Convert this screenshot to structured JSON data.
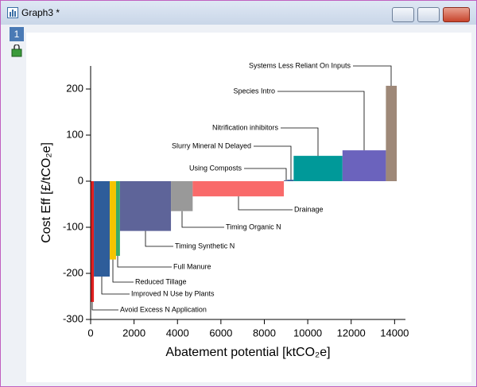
{
  "window": {
    "title": "Graph3 *",
    "layer": "1"
  },
  "chart_data": {
    "type": "mac",
    "xlabel": "Abatement potential [ktCO₂e]",
    "ylabel": "Cost Eff [£/tCO₂e]",
    "xlim": [
      0,
      14500
    ],
    "xticks": [
      0,
      2000,
      4000,
      6000,
      8000,
      10000,
      12000,
      14000
    ],
    "ylim": [
      -300,
      250
    ],
    "yticks": [
      -300,
      -200,
      -100,
      0,
      100,
      200
    ],
    "categories": [
      "Avoid Excess N Application",
      "Improved N Use by Plants",
      "Reduced Tillage",
      "Full Manure",
      "Timing Synthetic N",
      "Timing Organic N",
      "Drainage",
      "Using Composts",
      "Slurry Mineral N Delayed",
      "Nitrification inhibitors",
      "Species Intro",
      "Systems Less Reliant On Inputs"
    ],
    "x0": [
      0,
      150,
      880,
      1170,
      1350,
      3700,
      4700,
      8900,
      9050,
      9350,
      11600,
      13600
    ],
    "x1": [
      150,
      880,
      1170,
      1350,
      3700,
      4700,
      8900,
      9050,
      9350,
      11600,
      13600,
      14100
    ],
    "values": [
      -262,
      -207,
      -170,
      -162,
      -108,
      -65,
      -33,
      2,
      3,
      55,
      67,
      207
    ],
    "colors": [
      "#e02020",
      "#2e5d9a",
      "#f5c400",
      "#3aaa6a",
      "#5e6499",
      "#999999",
      "#f96a6a",
      "#5e6499",
      "#2e5d9a",
      "#009999",
      "#6b63bd",
      "#9e8878"
    ]
  }
}
